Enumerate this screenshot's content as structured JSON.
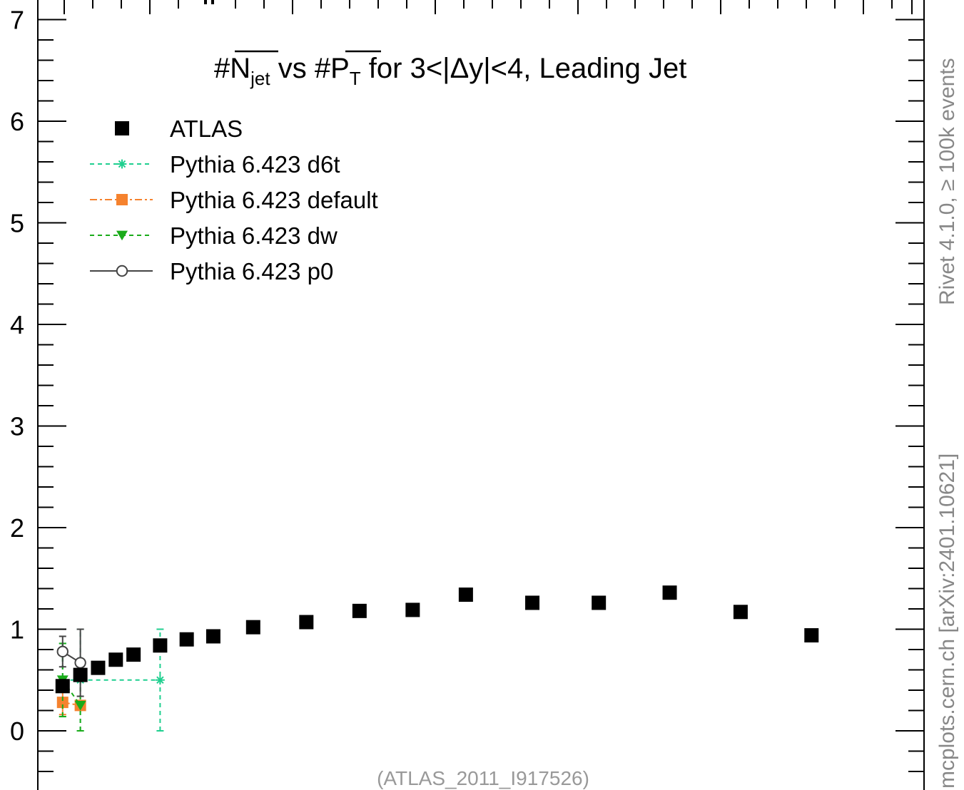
{
  "chart_data": {
    "type": "scatter",
    "title": {
      "part1": "#",
      "nsym": "N",
      "nsub": "jet",
      "part2": " vs #",
      "psym": "P",
      "psub": "T",
      "part3": " for 3<|Δy|<4, Leading Jet"
    },
    "ylim": [
      -0.5,
      7
    ],
    "yticks": [
      "0",
      "1",
      "2",
      "3",
      "4",
      "5",
      "6",
      "7"
    ],
    "grid": false,
    "legend_position": "top-left",
    "series": [
      {
        "name": "ATLAS",
        "color": "#000000",
        "marker": "square",
        "points": [
          {
            "x": 0.028,
            "y": 0.44
          },
          {
            "x": 0.048,
            "y": 0.55
          },
          {
            "x": 0.068,
            "y": 0.62
          },
          {
            "x": 0.088,
            "y": 0.7
          },
          {
            "x": 0.108,
            "y": 0.75
          },
          {
            "x": 0.138,
            "y": 0.84
          },
          {
            "x": 0.168,
            "y": 0.9
          },
          {
            "x": 0.198,
            "y": 0.93
          },
          {
            "x": 0.243,
            "y": 1.02
          },
          {
            "x": 0.303,
            "y": 1.07
          },
          {
            "x": 0.363,
            "y": 1.18
          },
          {
            "x": 0.423,
            "y": 1.19
          },
          {
            "x": 0.483,
            "y": 1.34
          },
          {
            "x": 0.558,
            "y": 1.26
          },
          {
            "x": 0.633,
            "y": 1.26
          },
          {
            "x": 0.713,
            "y": 1.36
          },
          {
            "x": 0.793,
            "y": 1.17
          },
          {
            "x": 0.873,
            "y": 0.94
          }
        ]
      },
      {
        "name": "Pythia 6.423 d6t",
        "color": "#1fcf8f",
        "marker": "star",
        "points": [
          {
            "x": 0.028,
            "y": 0.5,
            "yerr": 0.36,
            "xerr": 0.0
          },
          {
            "x": 0.048,
            "y": 0.5,
            "yerr": 0.5,
            "xerr": 0.0
          },
          {
            "x": 0.138,
            "y": 0.5,
            "yerr": 0.5,
            "xerr": 0.0
          }
        ],
        "segments": [
          [
            0.028,
            0.5,
            0.048,
            0.5
          ],
          [
            0.048,
            0.5,
            0.138,
            0.5
          ]
        ]
      },
      {
        "name": "Pythia 6.423 default",
        "color": "#f5822e",
        "marker": "square",
        "points": [
          {
            "x": 0.028,
            "y": 0.28,
            "yerr": 0.12
          },
          {
            "x": 0.048,
            "y": 0.25,
            "yerr": 0.0
          }
        ]
      },
      {
        "name": "Pythia 6.423 dw",
        "color": "#1aab1a",
        "marker": "triangle-down",
        "points": [
          {
            "x": 0.028,
            "y": 0.5,
            "yerr": 0.36
          },
          {
            "x": 0.048,
            "y": 0.25,
            "yerr": 0.25
          }
        ]
      },
      {
        "name": "Pythia 6.423 p0",
        "color": "#444444",
        "marker": "circle-open",
        "points": [
          {
            "x": 0.028,
            "y": 0.78,
            "yerr": 0.15
          },
          {
            "x": 0.048,
            "y": 0.67,
            "yerr": 0.33
          }
        ]
      }
    ]
  },
  "side_labels": {
    "rivet": "Rivet 4.1.0, ≥ 100k events",
    "mcplots": "mcplots.cern.ch [arXiv:2401.10621]"
  },
  "analysis_label": "(ATLAS_2011_I917526)"
}
